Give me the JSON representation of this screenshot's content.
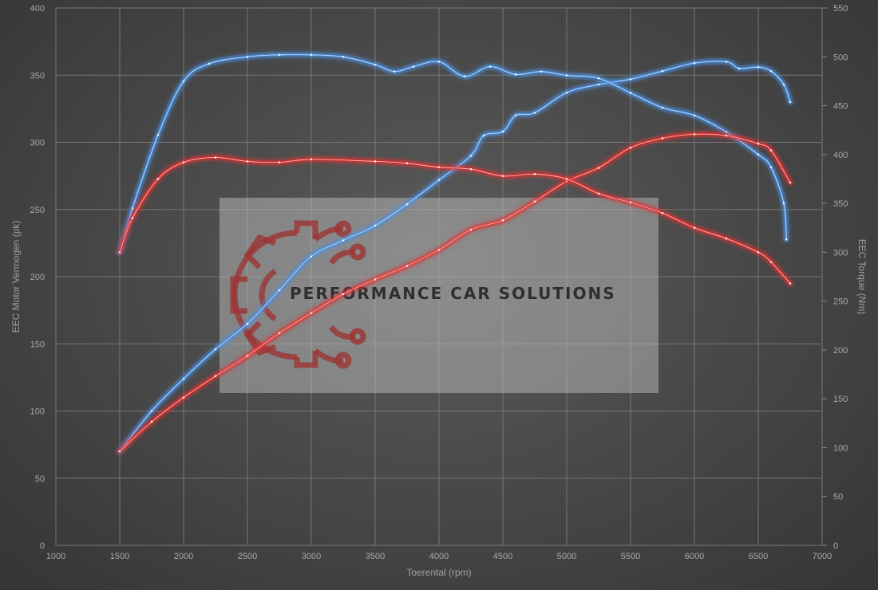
{
  "chart_data": {
    "type": "line",
    "xlabel": "Toerental (rpm)",
    "ylabel": "EEC Motor Vermogen (pk)",
    "y2label": "EEC Torque (Nm)",
    "xlim": [
      1000,
      7000
    ],
    "ylim": [
      0,
      400
    ],
    "y2lim": [
      0,
      550
    ],
    "x_ticks": [
      1000,
      1500,
      2000,
      2500,
      3000,
      3500,
      4000,
      4500,
      5000,
      5500,
      6000,
      6500,
      7000
    ],
    "y_ticks": [
      0,
      50,
      100,
      150,
      200,
      250,
      300,
      350,
      400
    ],
    "y2_ticks": [
      0,
      50,
      100,
      150,
      200,
      250,
      300,
      350,
      400,
      450,
      500,
      550
    ],
    "grid": true,
    "watermark": "PERFORMANCE CAR SOLUTIONS",
    "series": [
      {
        "color": "#4a8fe0",
        "axis": "left",
        "points": [
          [
            1500,
            70
          ],
          [
            1750,
            100
          ],
          [
            2000,
            124
          ],
          [
            2250,
            146
          ],
          [
            2500,
            165
          ],
          [
            2750,
            190
          ],
          [
            3000,
            215
          ],
          [
            3250,
            227
          ],
          [
            3500,
            238
          ],
          [
            3750,
            254
          ],
          [
            4000,
            272
          ],
          [
            4250,
            290
          ],
          [
            4350,
            305
          ],
          [
            4500,
            308
          ],
          [
            4600,
            320
          ],
          [
            4750,
            322
          ],
          [
            5000,
            337
          ],
          [
            5250,
            343
          ],
          [
            5500,
            347
          ],
          [
            5750,
            353
          ],
          [
            6000,
            359
          ],
          [
            6250,
            360
          ],
          [
            6350,
            355
          ],
          [
            6500,
            356
          ],
          [
            6600,
            353
          ],
          [
            6700,
            343
          ],
          [
            6750,
            330
          ]
        ]
      },
      {
        "color": "#4a8fe0",
        "axis": "right",
        "points": [
          [
            1500,
            300
          ],
          [
            1600,
            345
          ],
          [
            1800,
            420
          ],
          [
            2000,
            475
          ],
          [
            2200,
            493
          ],
          [
            2500,
            500
          ],
          [
            2750,
            502
          ],
          [
            3000,
            502
          ],
          [
            3250,
            500
          ],
          [
            3500,
            492
          ],
          [
            3650,
            485
          ],
          [
            3800,
            490
          ],
          [
            4000,
            495
          ],
          [
            4200,
            480
          ],
          [
            4400,
            490
          ],
          [
            4600,
            482
          ],
          [
            4800,
            485
          ],
          [
            5000,
            481
          ],
          [
            5250,
            478
          ],
          [
            5500,
            463
          ],
          [
            5750,
            448
          ],
          [
            6000,
            440
          ],
          [
            6250,
            423
          ],
          [
            6500,
            400
          ],
          [
            6600,
            387
          ],
          [
            6700,
            350
          ],
          [
            6720,
            313
          ]
        ]
      },
      {
        "color": "#e03030",
        "axis": "left",
        "points": [
          [
            1500,
            70
          ],
          [
            1750,
            92
          ],
          [
            2000,
            110
          ],
          [
            2250,
            126
          ],
          [
            2500,
            141
          ],
          [
            2750,
            158
          ],
          [
            3000,
            173
          ],
          [
            3250,
            187
          ],
          [
            3500,
            198
          ],
          [
            3750,
            208
          ],
          [
            4000,
            220
          ],
          [
            4250,
            235
          ],
          [
            4500,
            242
          ],
          [
            4750,
            256
          ],
          [
            5000,
            271
          ],
          [
            5250,
            281
          ],
          [
            5500,
            296
          ],
          [
            5750,
            303
          ],
          [
            6000,
            306
          ],
          [
            6250,
            305
          ],
          [
            6500,
            299
          ],
          [
            6600,
            294
          ],
          [
            6750,
            270
          ]
        ]
      },
      {
        "color": "#e03030",
        "axis": "right",
        "points": [
          [
            1500,
            300
          ],
          [
            1600,
            335
          ],
          [
            1800,
            375
          ],
          [
            2000,
            392
          ],
          [
            2250,
            397
          ],
          [
            2500,
            393
          ],
          [
            2750,
            392
          ],
          [
            3000,
            395
          ],
          [
            3500,
            393
          ],
          [
            3750,
            391
          ],
          [
            4000,
            387
          ],
          [
            4250,
            385
          ],
          [
            4500,
            378
          ],
          [
            4750,
            380
          ],
          [
            5000,
            375
          ],
          [
            5250,
            360
          ],
          [
            5500,
            351
          ],
          [
            5750,
            340
          ],
          [
            6000,
            325
          ],
          [
            6250,
            314
          ],
          [
            6500,
            300
          ],
          [
            6600,
            290
          ],
          [
            6750,
            268
          ]
        ]
      }
    ]
  }
}
